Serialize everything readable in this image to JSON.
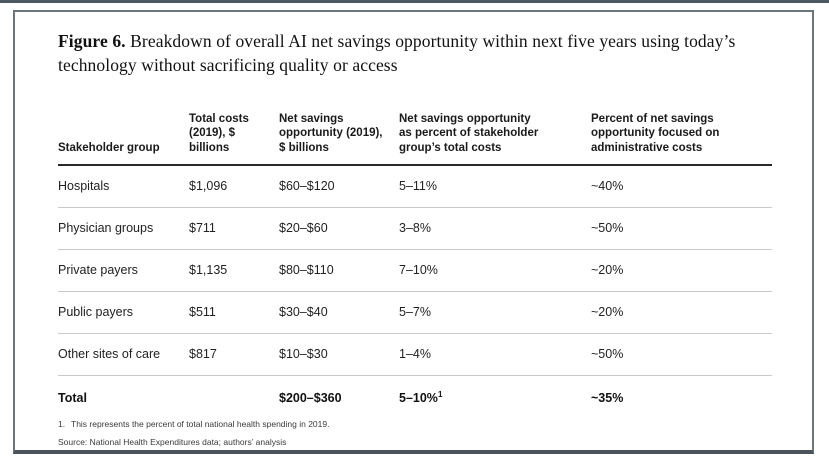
{
  "figure": {
    "label": "Figure 6.",
    "title": "Breakdown of overall AI net savings opportunity within next five years using today’s technology without sacrificing quality or access"
  },
  "table": {
    "headers": [
      "Stakeholder group",
      "Total costs\n(2019), $\nbillions",
      "Net savings\nopportunity (2019),\n$ billions",
      "Net savings opportunity\nas percent of stakeholder\ngroup’s total costs",
      "Percent of net savings\nopportunity focused on\nadministrative costs"
    ],
    "rows": [
      {
        "stakeholder": "Hospitals",
        "total_costs": "$1,096",
        "net_savings": "$60–$120",
        "savings_pct": "5–11%",
        "admin_pct": "~40%"
      },
      {
        "stakeholder": "Physician groups",
        "total_costs": "$711",
        "net_savings": "$20–$60",
        "savings_pct": "3–8%",
        "admin_pct": "~50%"
      },
      {
        "stakeholder": "Private payers",
        "total_costs": "$1,135",
        "net_savings": "$80–$110",
        "savings_pct": "7–10%",
        "admin_pct": "~20%"
      },
      {
        "stakeholder": "Public payers",
        "total_costs": "$511",
        "net_savings": "$30–$40",
        "savings_pct": "5–7%",
        "admin_pct": "~20%"
      },
      {
        "stakeholder": "Other sites of care",
        "total_costs": "$817",
        "net_savings": "$10–$30",
        "savings_pct": "1–4%",
        "admin_pct": "~50%"
      }
    ],
    "total": {
      "stakeholder": "Total",
      "total_costs": "",
      "net_savings": "$200–$360",
      "savings_pct": "5–10%",
      "savings_pct_sup": "1",
      "admin_pct": "~35%"
    }
  },
  "footnotes": {
    "note_marker": "1.",
    "note_text": "This represents the percent of total national health spending in 2019.",
    "source": "Source: National Health Expenditures data; authors’ analysis"
  },
  "colors": {
    "frame_border": "#6b757e",
    "frame_bottom_border": "#49545c",
    "header_rule": "#2a2a2a",
    "row_rule": "#c7c9ca"
  }
}
